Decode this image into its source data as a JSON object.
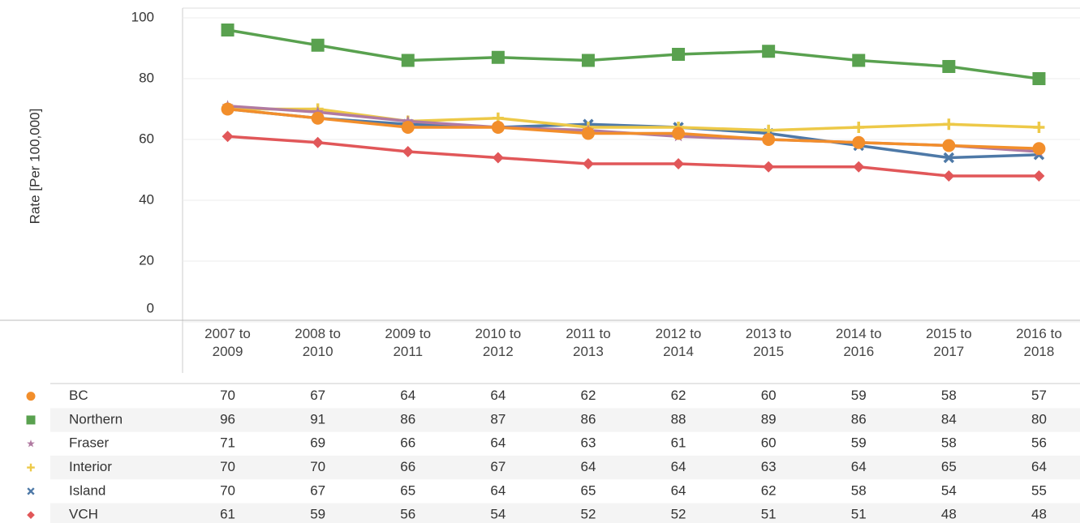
{
  "chart_data": {
    "type": "line",
    "y_label": "Rate [Per 100,000]",
    "categories": [
      "2007 to 2009",
      "2008 to 2010",
      "2009 to 2011",
      "2010 to 2012",
      "2011 to 2013",
      "2012 to 2014",
      "2013 to 2015",
      "2014 to 2016",
      "2015 to 2017",
      "2016 to 2018"
    ],
    "series": [
      {
        "name": "BC",
        "color": "#f28e2b",
        "marker": "circle",
        "values": [
          70,
          67,
          64,
          64,
          62,
          62,
          60,
          59,
          58,
          57
        ]
      },
      {
        "name": "Northern",
        "color": "#59a14f",
        "marker": "square",
        "values": [
          96,
          91,
          86,
          87,
          86,
          88,
          89,
          86,
          84,
          80
        ]
      },
      {
        "name": "Fraser",
        "color": "#b07aa1",
        "marker": "star",
        "values": [
          71,
          69,
          66,
          64,
          63,
          61,
          60,
          59,
          58,
          56
        ]
      },
      {
        "name": "Interior",
        "color": "#edc948",
        "marker": "plus",
        "values": [
          70,
          70,
          66,
          67,
          64,
          64,
          63,
          64,
          65,
          64
        ]
      },
      {
        "name": "Island",
        "color": "#4e79a7",
        "marker": "cross",
        "values": [
          70,
          67,
          65,
          64,
          65,
          64,
          62,
          58,
          54,
          55
        ]
      },
      {
        "name": "VCH",
        "color": "#e15759",
        "marker": "diamond",
        "values": [
          61,
          59,
          56,
          54,
          52,
          52,
          51,
          51,
          48,
          48
        ]
      }
    ],
    "ylim": [
      0,
      100
    ],
    "yticks": [
      0,
      20,
      40,
      60,
      80,
      100
    ],
    "grid": true
  }
}
